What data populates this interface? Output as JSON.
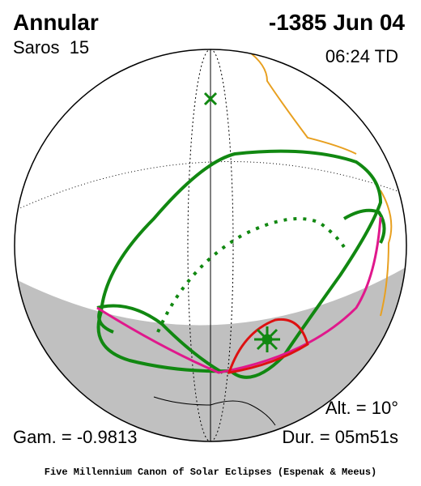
{
  "header": {
    "title": "Annular",
    "date": "-1385 Jun 04",
    "saros": "Saros  15",
    "time": "06:24 TD"
  },
  "footer": {
    "altitude": "Alt. = 10°",
    "gamma": "Gam. = -0.9813",
    "duration": "Dur. = 05m51s"
  },
  "caption": "Five Millennium Canon of Solar Eclipses (Espenak & Meeus)"
}
